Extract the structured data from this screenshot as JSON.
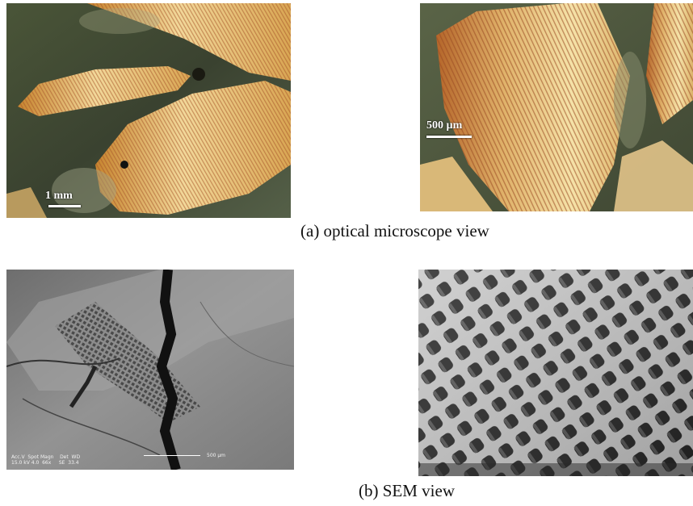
{
  "figure": {
    "caption_a": "(a) optical microscope view",
    "caption_b": "(b) SEM view",
    "scale_left": "1 mm",
    "scale_right": "500 µm",
    "sem_info_line1": "Acc.V  Spot Magn    Det  WD",
    "sem_info_line2": "15.0 kV 4.0  66x     SE  33.4",
    "sem_scale_text": "500 µm"
  },
  "colors": {
    "optical_background": "#3d4630",
    "optical_gold": "#e2c27a",
    "optical_rust": "#b0632a",
    "sem_gray": "#8e8e8e"
  }
}
